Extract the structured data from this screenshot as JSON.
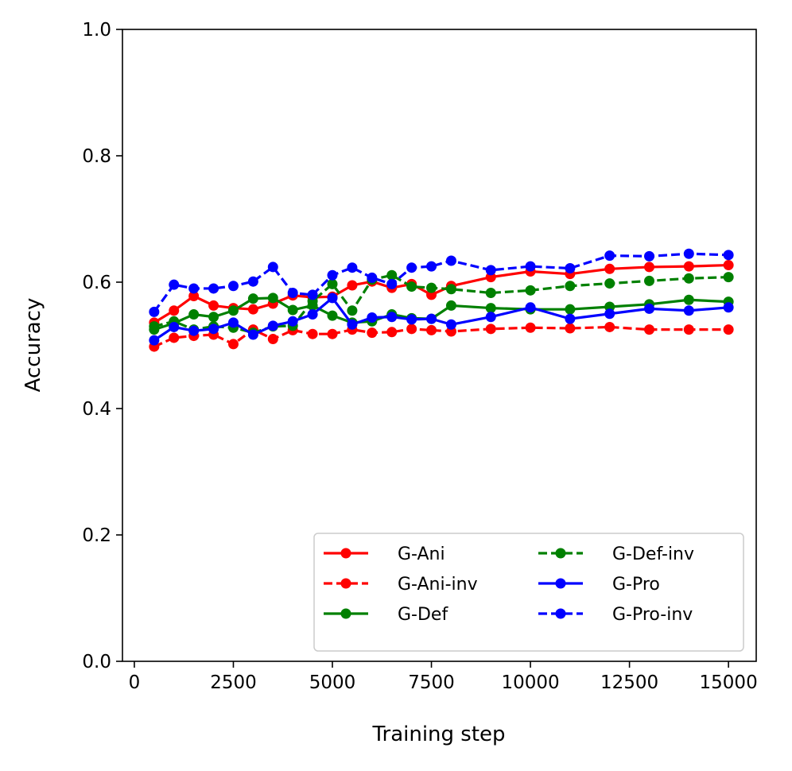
{
  "chart_data": {
    "type": "line",
    "title": "",
    "xlabel": "Training step",
    "ylabel": "Accuracy",
    "xlim": [
      -300,
      15700
    ],
    "ylim": [
      0.0,
      1.0
    ],
    "xticks": [
      0,
      2500,
      5000,
      7500,
      10000,
      12500,
      15000
    ],
    "xtick_labels": [
      "0",
      "2500",
      "5000",
      "7500",
      "10000",
      "12500",
      "15000"
    ],
    "yticks": [
      0.0,
      0.2,
      0.4,
      0.6,
      0.8,
      1.0
    ],
    "ytick_labels": [
      "0.0",
      "0.2",
      "0.4",
      "0.6",
      "0.8",
      "1.0"
    ],
    "grid": false,
    "legend": {
      "position": "lower-right",
      "columns": 2
    },
    "x": [
      500,
      1000,
      1500,
      2000,
      2500,
      3000,
      3500,
      4000,
      4500,
      5000,
      5500,
      6000,
      6500,
      7000,
      7500,
      8000,
      9000,
      10000,
      11000,
      12000,
      13000,
      14000,
      15000
    ],
    "series": [
      {
        "name": "G-Ani",
        "color": "#ff0000",
        "dash": "solid",
        "values": [
          0.536,
          0.555,
          0.578,
          0.563,
          0.559,
          0.557,
          0.566,
          0.579,
          0.576,
          0.577,
          0.595,
          0.601,
          0.591,
          0.597,
          0.58,
          0.594,
          0.608,
          0.617,
          0.613,
          0.621,
          0.624,
          0.625,
          0.627
        ]
      },
      {
        "name": "G-Ani-inv",
        "color": "#ff0000",
        "dash": "dashed",
        "values": [
          0.498,
          0.512,
          0.515,
          0.517,
          0.502,
          0.525,
          0.51,
          0.524,
          0.518,
          0.518,
          0.525,
          0.52,
          0.521,
          0.526,
          0.524,
          0.522,
          0.526,
          0.528,
          0.527,
          0.529,
          0.525,
          0.525,
          0.525
        ]
      },
      {
        "name": "G-Def",
        "color": "#008000",
        "dash": "solid",
        "values": [
          0.525,
          0.535,
          0.549,
          0.545,
          0.555,
          0.574,
          0.575,
          0.556,
          0.563,
          0.547,
          0.536,
          0.538,
          0.549,
          0.543,
          0.542,
          0.563,
          0.559,
          0.557,
          0.557,
          0.561,
          0.565,
          0.572,
          0.569
        ]
      },
      {
        "name": "G-Def-inv",
        "color": "#008000",
        "dash": "dashed",
        "values": [
          0.53,
          0.538,
          0.525,
          0.53,
          0.528,
          0.52,
          0.53,
          0.531,
          0.57,
          0.597,
          0.555,
          0.604,
          0.611,
          0.593,
          0.591,
          0.589,
          0.583,
          0.587,
          0.594,
          0.598,
          0.602,
          0.606,
          0.608
        ]
      },
      {
        "name": "G-Pro",
        "color": "#0000ff",
        "dash": "solid",
        "values": [
          0.508,
          0.529,
          0.523,
          0.526,
          0.536,
          0.517,
          0.531,
          0.538,
          0.549,
          0.575,
          0.533,
          0.544,
          0.545,
          0.541,
          0.542,
          0.533,
          0.545,
          0.56,
          0.542,
          0.55,
          0.558,
          0.555,
          0.56
        ]
      },
      {
        "name": "G-Pro-inv",
        "color": "#0000ff",
        "dash": "dashed",
        "values": [
          0.553,
          0.596,
          0.59,
          0.59,
          0.594,
          0.601,
          0.624,
          0.583,
          0.58,
          0.611,
          0.623,
          0.607,
          0.597,
          0.623,
          0.625,
          0.634,
          0.619,
          0.625,
          0.622,
          0.642,
          0.641,
          0.645,
          0.643
        ]
      }
    ]
  }
}
